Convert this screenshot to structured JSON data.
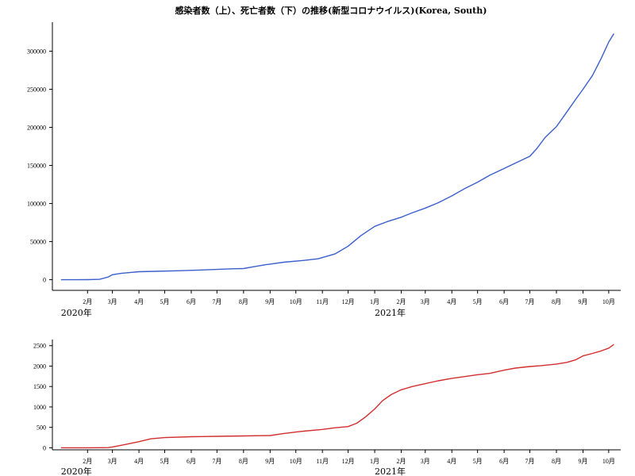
{
  "title": "感染者数（上）、死亡者数（下）の推移(新型コロナウイルス)(Korea, South)",
  "chart_data": [
    {
      "type": "line",
      "name": "cases",
      "color": "#3a5fcd",
      "ylim": [
        -14000,
        338000
      ],
      "yticks": [
        0,
        50000,
        100000,
        150000,
        200000,
        250000,
        300000
      ],
      "ytick_labels": [
        "0",
        "50000",
        "100000",
        "150000",
        "200000",
        "250000",
        "300000"
      ],
      "xlim": [
        -10,
        653
      ],
      "xticks": [
        31,
        60,
        91,
        121,
        152,
        182,
        213,
        244,
        274,
        305,
        335,
        366,
        397,
        425,
        456,
        486,
        517,
        547,
        578,
        609,
        639
      ],
      "xtick_labels": [
        "2月",
        "3月",
        "4月",
        "5月",
        "6月",
        "7月",
        "8月",
        "9月",
        "10月",
        "11月",
        "12月",
        "1月",
        "2月",
        "3月",
        "4月",
        "5月",
        "6月",
        "7月",
        "8月",
        "9月",
        "10月"
      ],
      "year_labels": [
        {
          "x": 0,
          "label": "2020年"
        },
        {
          "x": 366,
          "label": "2021年"
        }
      ],
      "x": [
        0,
        15,
        31,
        45,
        55,
        60,
        65,
        70,
        80,
        91,
        110,
        140,
        170,
        200,
        213,
        225,
        240,
        244,
        260,
        280,
        300,
        320,
        335,
        350,
        366,
        380,
        397,
        410,
        425,
        440,
        456,
        470,
        486,
        500,
        517,
        530,
        547,
        555,
        565,
        578,
        590,
        600,
        609,
        620,
        630,
        639,
        645
      ],
      "y": [
        0,
        0,
        20,
        500,
        3500,
        6500,
        7500,
        8300,
        9300,
        10500,
        11000,
        11800,
        13000,
        14300,
        14600,
        17000,
        20000,
        20500,
        23000,
        25000,
        27500,
        34000,
        44000,
        58000,
        70000,
        76000,
        82000,
        88000,
        94000,
        101000,
        110000,
        119000,
        128000,
        137000,
        146000,
        153000,
        162000,
        172000,
        187000,
        201000,
        220000,
        236000,
        250000,
        268000,
        290000,
        312000,
        323000
      ]
    },
    {
      "type": "line",
      "name": "deaths",
      "color": "#d12f2f",
      "ylim": [
        -50,
        2650
      ],
      "yticks": [
        0,
        500,
        1000,
        1500,
        2000,
        2500
      ],
      "ytick_labels": [
        "0",
        "500",
        "1000",
        "1500",
        "2000",
        "2500"
      ],
      "xlim": [
        -10,
        653
      ],
      "xticks": [
        31,
        60,
        91,
        121,
        152,
        182,
        213,
        244,
        274,
        305,
        335,
        366,
        397,
        425,
        456,
        486,
        517,
        547,
        578,
        609,
        639
      ],
      "xtick_labels": [
        "2月",
        "3月",
        "4月",
        "5月",
        "6月",
        "7月",
        "8月",
        "9月",
        "10月",
        "11月",
        "12月",
        "1月",
        "2月",
        "3月",
        "4月",
        "5月",
        "6月",
        "7月",
        "8月",
        "9月",
        "10月"
      ],
      "year_labels": [
        {
          "x": 0,
          "label": "2020年"
        },
        {
          "x": 366,
          "label": "2021年"
        }
      ],
      "x": [
        0,
        31,
        55,
        60,
        75,
        91,
        105,
        121,
        152,
        182,
        213,
        230,
        244,
        260,
        280,
        305,
        320,
        335,
        345,
        355,
        366,
        375,
        385,
        397,
        410,
        425,
        440,
        456,
        470,
        486,
        500,
        517,
        530,
        547,
        560,
        578,
        590,
        600,
        609,
        620,
        630,
        639,
        645
      ],
      "y": [
        0,
        0,
        5,
        20,
        80,
        150,
        220,
        250,
        270,
        280,
        290,
        295,
        300,
        350,
        400,
        450,
        490,
        520,
        600,
        750,
        950,
        1150,
        1300,
        1420,
        1500,
        1570,
        1640,
        1700,
        1740,
        1790,
        1820,
        1900,
        1950,
        1990,
        2010,
        2050,
        2090,
        2150,
        2250,
        2310,
        2370,
        2440,
        2530
      ]
    }
  ]
}
